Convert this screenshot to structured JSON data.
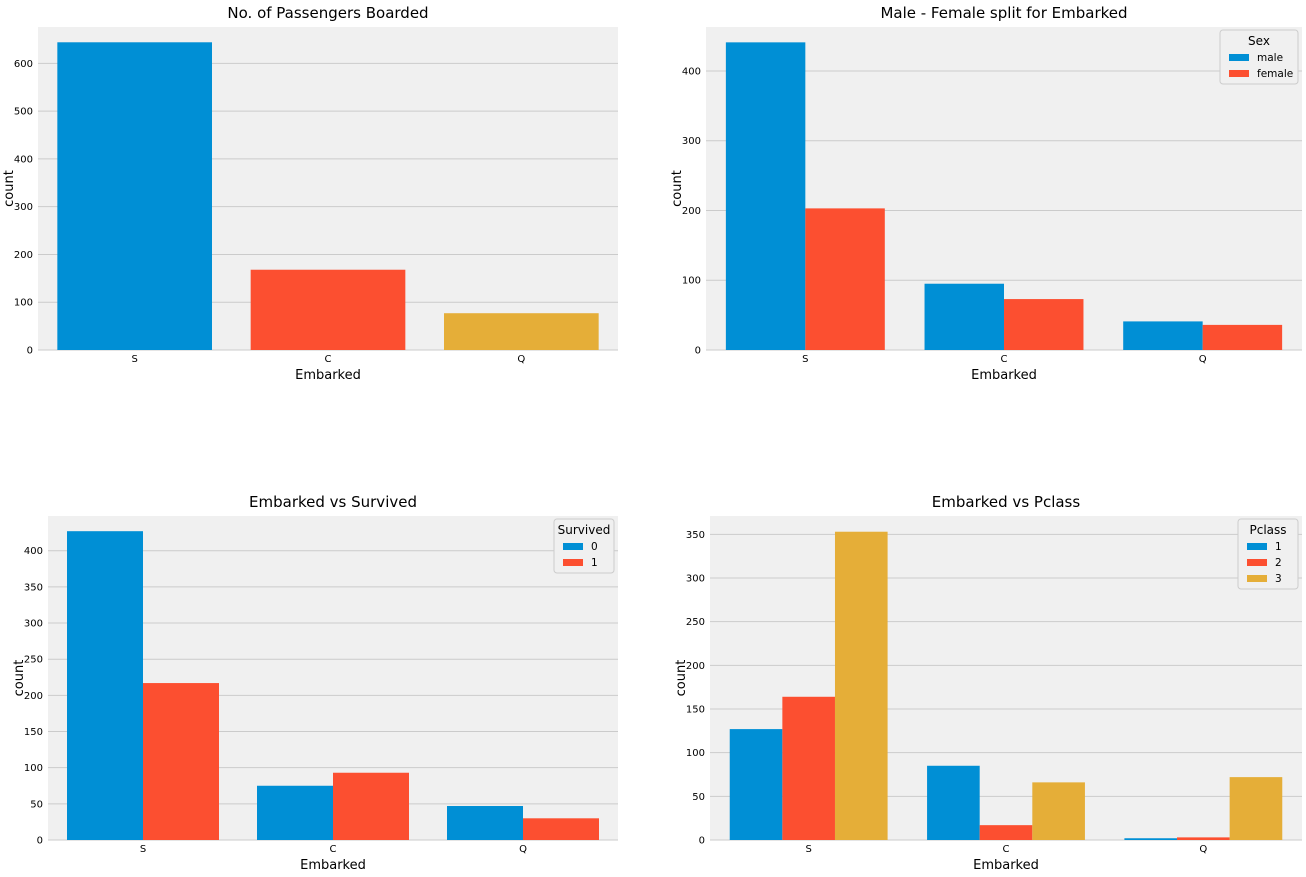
{
  "palette": [
    "#008fd5",
    "#fc4f30",
    "#e5ae38"
  ],
  "chart_data": [
    {
      "type": "bar",
      "title": "No. of Passengers Boarded",
      "xlabel": "Embarked",
      "ylabel": "count",
      "categories": [
        "S",
        "C",
        "Q"
      ],
      "series": [
        {
          "values": [
            644,
            168,
            77
          ],
          "per_category_color": true
        }
      ],
      "ylim": [
        0,
        676
      ],
      "yticks": [
        0,
        100,
        200,
        300,
        400,
        500,
        600
      ],
      "grid": true,
      "legend": null
    },
    {
      "type": "bar",
      "title": "Male - Female split for Embarked",
      "xlabel": "Embarked",
      "ylabel": "count",
      "categories": [
        "S",
        "C",
        "Q"
      ],
      "series": [
        {
          "name": "male",
          "values": [
            441,
            95,
            41
          ]
        },
        {
          "name": "female",
          "values": [
            203,
            73,
            36
          ]
        }
      ],
      "ylim": [
        0,
        463
      ],
      "yticks": [
        0,
        100,
        200,
        300,
        400
      ],
      "grid": true,
      "legend": {
        "title": "Sex",
        "location": "top-right"
      }
    },
    {
      "type": "bar",
      "title": "Embarked vs Survived",
      "xlabel": "Embarked",
      "ylabel": "count",
      "categories": [
        "S",
        "C",
        "Q"
      ],
      "series": [
        {
          "name": "0",
          "values": [
            427,
            75,
            47
          ]
        },
        {
          "name": "1",
          "values": [
            217,
            93,
            30
          ]
        }
      ],
      "ylim": [
        0,
        448
      ],
      "yticks": [
        0,
        50,
        100,
        150,
        200,
        250,
        300,
        350,
        400
      ],
      "grid": true,
      "legend": {
        "title": "Survived",
        "location": "top-right"
      }
    },
    {
      "type": "bar",
      "title": "Embarked vs Pclass",
      "xlabel": "Embarked",
      "ylabel": "count",
      "categories": [
        "S",
        "C",
        "Q"
      ],
      "series": [
        {
          "name": "1",
          "values": [
            127,
            85,
            2
          ]
        },
        {
          "name": "2",
          "values": [
            164,
            17,
            3
          ]
        },
        {
          "name": "3",
          "values": [
            353,
            66,
            72
          ]
        }
      ],
      "ylim": [
        0,
        371
      ],
      "yticks": [
        0,
        50,
        100,
        150,
        200,
        250,
        300,
        350
      ],
      "grid": true,
      "legend": {
        "title": "Pclass",
        "location": "top-right"
      }
    }
  ]
}
